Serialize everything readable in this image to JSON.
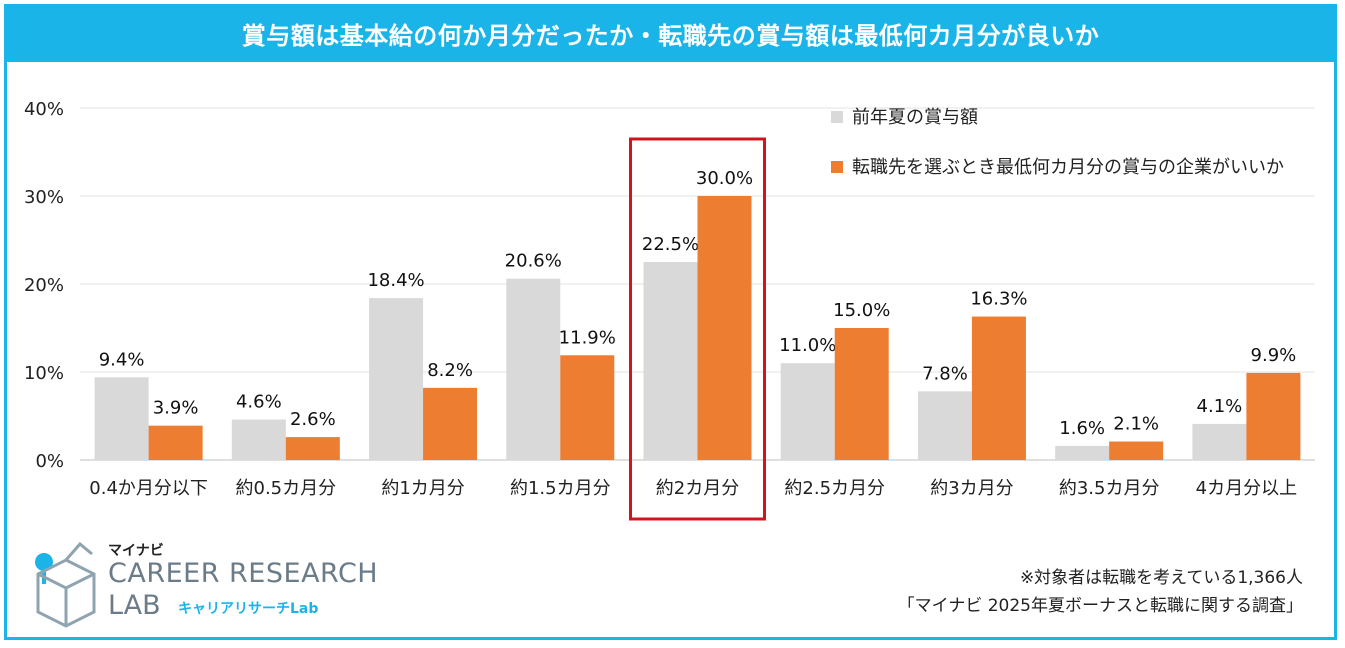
{
  "title": "賞与額は基本給の何か月分だったか・転職先の賞与額は最低何カ月分が良いか",
  "chart_data": {
    "type": "bar",
    "categories": [
      "0.4か月分以下",
      "約0.5カ月分",
      "約1カ月分",
      "約1.5カ月分",
      "約2カ月分",
      "約2.5カ月分",
      "約3カ月分",
      "約3.5カ月分",
      "4カ月分以上"
    ],
    "series": [
      {
        "name": "前年夏の賞与額",
        "values": [
          9.4,
          4.6,
          18.4,
          20.6,
          22.5,
          11.0,
          7.8,
          1.6,
          4.1
        ],
        "labels": [
          "9.4%",
          "4.6%",
          "18.4%",
          "20.6%",
          "22.5%",
          "11.0%",
          "7.8%",
          "1.6%",
          "4.1%"
        ],
        "color": "#d9d9d9"
      },
      {
        "name": "転職先を選ぶとき最低何カ月分の賞与の企業がいいか",
        "values": [
          3.9,
          2.6,
          8.2,
          11.9,
          30.0,
          15.0,
          16.3,
          2.1,
          9.9
        ],
        "labels": [
          "3.9%",
          "2.6%",
          "8.2%",
          "11.9%",
          "30.0%",
          "15.0%",
          "16.3%",
          "2.1%",
          "9.9%"
        ],
        "color": "#ed7d31"
      }
    ],
    "ylim": [
      0,
      40
    ],
    "yticks": [
      "0%",
      "10%",
      "20%",
      "30%",
      "40%"
    ],
    "highlight_category": "約2カ月分",
    "highlight_color": "#d0161c",
    "grid": true,
    "legend_position": "top-right"
  },
  "logo": {
    "brand": "マイナビ",
    "line1": "CAREER RESEARCH",
    "line2": "LAB",
    "sub": "キャリアリサーチLab"
  },
  "notes": {
    "line1": "※対象者は転職を考えている1,366人",
    "line2": "「マイナビ 2025年夏ボーナスと転職に関する調査」"
  },
  "colors": {
    "accent": "#1ab4e8"
  }
}
